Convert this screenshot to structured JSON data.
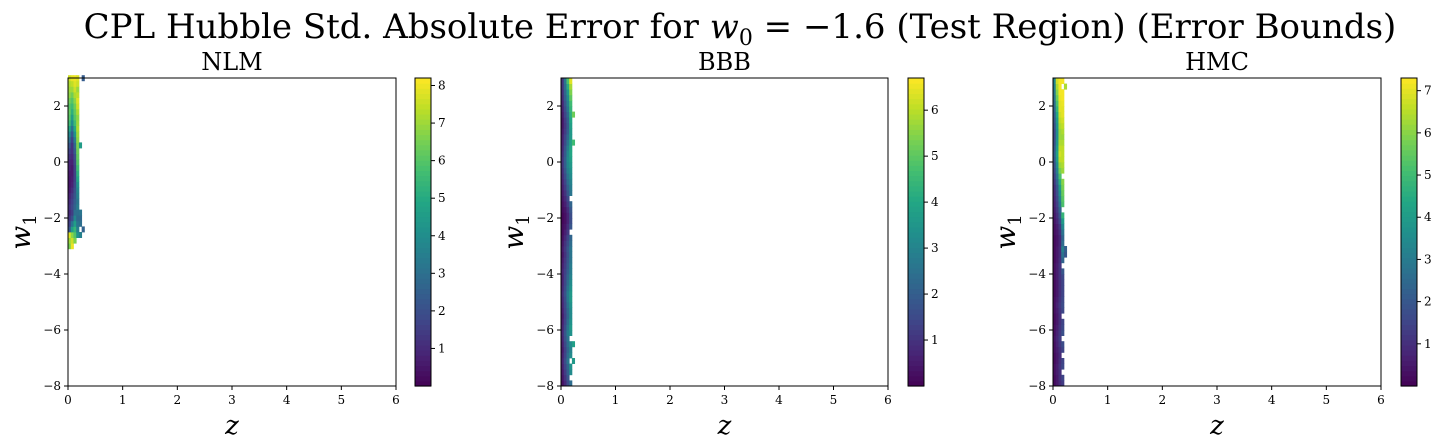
{
  "figure": {
    "title_main": "CPL Hubble Std. Absolute Error for ",
    "title_var": "w",
    "title_sub": "0",
    "title_eq": " = −1.6 (Test Region) (Error Bounds)"
  },
  "chart_data": [
    {
      "type": "heatmap",
      "title": "NLM",
      "xlabel": "z",
      "ylabel_var": "w",
      "ylabel_sub": "1",
      "xlim": [
        0,
        6
      ],
      "ylim": [
        -8,
        3
      ],
      "xticks": [
        "0",
        "1",
        "2",
        "3",
        "4",
        "5",
        "6"
      ],
      "yticks": [
        "−8",
        "−6",
        "−4",
        "−2",
        "0",
        "2"
      ],
      "colorbar": {
        "colormap": "viridis",
        "min": 0,
        "max": 8.2,
        "ticks": [
          "1",
          "2",
          "3",
          "4",
          "5",
          "6",
          "7",
          "8"
        ]
      },
      "cells": {
        "x_start": 0.0,
        "x_step": 0.05,
        "y_start": -3.1,
        "y_step": 0.2,
        "columns": [
          [
            6.5,
            7.0,
            7.8,
            2.2,
            1.6,
            1.3,
            1.0,
            1.2,
            1.0,
            0.8,
            0.6,
            0.5,
            0.5,
            0.6,
            0.8,
            0.9,
            1.2,
            1.6,
            2.2,
            3.0,
            3.8,
            4.8,
            5.6,
            6.0,
            6.2,
            6.0,
            6.4,
            6.8,
            7.0,
            7.2,
            7.6
          ],
          [
            8.0,
            7.6,
            6.8,
            4.6,
            3.2,
            2.0,
            1.5,
            1.8,
            1.6,
            1.4,
            1.1,
            0.8,
            0.7,
            0.6,
            0.6,
            0.8,
            1.0,
            1.2,
            1.2,
            1.6,
            2.2,
            3.0,
            4.0,
            4.6,
            5.2,
            5.6,
            6.0,
            6.4,
            7.0,
            7.4,
            7.9
          ],
          [
            null,
            6.6,
            6.0,
            5.4,
            4.6,
            3.8,
            3.0,
            2.6,
            2.4,
            2.2,
            2.0,
            1.8,
            1.6,
            1.6,
            1.6,
            1.8,
            2.0,
            2.4,
            2.8,
            3.4,
            4.2,
            5.0,
            5.6,
            6.0,
            6.2,
            6.4,
            6.8,
            7.2,
            7.6,
            7.8,
            8.0
          ],
          [
            null,
            null,
            4.2,
            3.6,
            3.2,
            2.8,
            3.0,
            3.4,
            3.2,
            3.6,
            3.8,
            4.2,
            4.8,
            5.2,
            5.6,
            6.0,
            6.2,
            6.4,
            6.6,
            6.8,
            7.0,
            7.2,
            7.0,
            6.8,
            7.2,
            7.6,
            7.8,
            7.4,
            7.0,
            7.6,
            7.8
          ],
          [
            null,
            null,
            3.6,
            null,
            3.0,
            2.8,
            3.2,
            null,
            null,
            null,
            null,
            null,
            null,
            null,
            null,
            null,
            null,
            null,
            4.5,
            null,
            null,
            null,
            null,
            null,
            null,
            null,
            null,
            null,
            null,
            null,
            null
          ],
          [
            null,
            null,
            null,
            2.6,
            null,
            null,
            null,
            null,
            null,
            null,
            null,
            null,
            null,
            null,
            null,
            null,
            null,
            null,
            null,
            null,
            null,
            null,
            null,
            null,
            null,
            null,
            null,
            null,
            null,
            null,
            2.4
          ]
        ]
      }
    },
    {
      "type": "heatmap",
      "title": "BBB",
      "xlabel": "z",
      "ylabel_var": "w",
      "ylabel_sub": "1",
      "xlim": [
        0,
        6
      ],
      "ylim": [
        -8,
        3
      ],
      "xticks": [
        "0",
        "1",
        "2",
        "3",
        "4",
        "5",
        "6"
      ],
      "yticks": [
        "−8",
        "−6",
        "−4",
        "−2",
        "0",
        "2"
      ],
      "colorbar": {
        "colormap": "viridis",
        "min": 0,
        "max": 6.7,
        "ticks": [
          "1",
          "2",
          "3",
          "4",
          "5",
          "6"
        ]
      },
      "cells": {
        "x_start": 0.0,
        "x_step": 0.05,
        "y_start": -8.0,
        "y_step": 0.2,
        "columns": [
          [
            0.3,
            0.4,
            0.5,
            0.6,
            0.7,
            0.6,
            0.5,
            0.6,
            0.7,
            0.8,
            0.7,
            0.6,
            0.5,
            0.6,
            0.7,
            0.8,
            0.9,
            0.8,
            0.7,
            0.6,
            0.7,
            0.6,
            0.5,
            0.4,
            0.5,
            0.4,
            0.3,
            0.2,
            0.2,
            0.1,
            0.1,
            0.2,
            0.3,
            0.4,
            0.5,
            0.6,
            0.7,
            0.8,
            0.9,
            1.0,
            1.0,
            0.9,
            0.8,
            0.7,
            0.6,
            0.5,
            0.4,
            0.4,
            0.5,
            0.6,
            0.7,
            0.8,
            0.9,
            1.0,
            1.0
          ],
          [
            0.8,
            1.0,
            1.2,
            1.4,
            1.6,
            1.4,
            1.3,
            1.5,
            1.7,
            1.8,
            1.6,
            1.4,
            1.3,
            1.4,
            1.5,
            1.6,
            1.7,
            1.6,
            1.5,
            1.4,
            1.3,
            1.2,
            1.1,
            1.0,
            1.1,
            1.0,
            0.8,
            0.6,
            0.4,
            0.3,
            0.3,
            0.4,
            0.6,
            0.8,
            1.0,
            1.2,
            1.4,
            1.6,
            1.8,
            2.0,
            2.0,
            1.9,
            1.8,
            1.6,
            1.4,
            1.2,
            1.1,
            1.2,
            1.4,
            1.6,
            1.8,
            2.0,
            2.2,
            2.4,
            2.6
          ],
          [
            1.6,
            1.8,
            2.0,
            2.2,
            2.6,
            2.4,
            2.2,
            2.4,
            2.6,
            2.8,
            2.6,
            2.4,
            2.2,
            2.3,
            2.5,
            2.7,
            2.8,
            2.6,
            2.4,
            2.2,
            2.0,
            1.9,
            1.8,
            1.7,
            1.8,
            1.6,
            1.4,
            1.1,
            0.9,
            0.7,
            0.7,
            0.9,
            1.2,
            1.5,
            1.8,
            2.1,
            2.4,
            2.6,
            2.9,
            3.1,
            3.2,
            3.1,
            2.9,
            2.6,
            2.3,
            2.0,
            1.9,
            2.0,
            2.3,
            2.6,
            2.9,
            3.2,
            3.6,
            4.2,
            4.8
          ],
          [
            2.4,
            null,
            3.2,
            3.4,
            null,
            3.2,
            3.0,
            3.2,
            null,
            3.4,
            3.6,
            3.4,
            3.2,
            3.2,
            3.4,
            3.6,
            3.6,
            3.4,
            3.2,
            3.0,
            2.8,
            2.8,
            2.6,
            2.6,
            2.6,
            2.4,
            2.2,
            null,
            1.8,
            1.6,
            1.6,
            1.8,
            2.2,
            null,
            2.6,
            2.8,
            3.0,
            3.2,
            3.4,
            3.6,
            3.8,
            4.0,
            4.0,
            3.8,
            3.6,
            3.6,
            3.8,
            4.0,
            4.2,
            4.4,
            4.6,
            5.0,
            5.4,
            5.8,
            6.4
          ],
          [
            null,
            null,
            null,
            null,
            3.6,
            null,
            null,
            3.8,
            null,
            null,
            null,
            null,
            null,
            null,
            null,
            null,
            null,
            null,
            null,
            null,
            null,
            null,
            null,
            null,
            null,
            null,
            null,
            null,
            null,
            null,
            null,
            null,
            null,
            null,
            null,
            null,
            null,
            null,
            null,
            null,
            null,
            null,
            null,
            4.6,
            null,
            null,
            null,
            null,
            5.2,
            null,
            null,
            null,
            null,
            null,
            null
          ]
        ]
      }
    },
    {
      "type": "heatmap",
      "title": "HMC",
      "xlabel": "z",
      "ylabel_var": "w",
      "ylabel_sub": "1",
      "xlim": [
        0,
        6
      ],
      "ylim": [
        -8,
        3
      ],
      "xticks": [
        "0",
        "1",
        "2",
        "3",
        "4",
        "5",
        "6"
      ],
      "yticks": [
        "−8",
        "−6",
        "−4",
        "−2",
        "0",
        "2"
      ],
      "colorbar": {
        "colormap": "viridis",
        "min": 0,
        "max": 7.3,
        "ticks": [
          "1",
          "2",
          "3",
          "4",
          "5",
          "6",
          "7"
        ]
      },
      "cells": {
        "x_start": 0.0,
        "x_step": 0.05,
        "y_start": -8.0,
        "y_step": 0.2,
        "columns": [
          [
            0.2,
            0.2,
            0.3,
            0.3,
            0.2,
            0.2,
            0.3,
            0.3,
            0.4,
            0.3,
            0.3,
            0.2,
            0.2,
            0.3,
            0.3,
            0.3,
            0.2,
            0.2,
            0.2,
            0.3,
            0.3,
            0.3,
            0.2,
            0.2,
            0.2,
            0.2,
            0.2,
            0.3,
            0.3,
            0.4,
            0.5,
            0.6,
            0.7,
            0.8,
            0.9,
            1.0,
            1.2,
            1.4,
            1.6,
            1.8,
            2.0,
            2.2,
            2.0,
            1.8,
            1.6,
            1.6,
            1.8,
            2.0,
            2.2,
            2.4,
            2.6,
            2.8,
            3.0,
            3.2,
            3.4
          ],
          [
            0.5,
            0.5,
            0.6,
            0.6,
            0.5,
            0.5,
            0.6,
            0.7,
            0.8,
            0.7,
            0.6,
            0.5,
            0.5,
            0.6,
            0.7,
            0.6,
            0.5,
            0.5,
            0.5,
            0.6,
            0.6,
            0.6,
            0.5,
            0.5,
            0.5,
            0.4,
            0.4,
            0.5,
            0.6,
            0.8,
            1.0,
            1.2,
            1.4,
            1.6,
            1.8,
            2.0,
            2.4,
            2.8,
            3.2,
            3.6,
            4.0,
            4.2,
            4.0,
            3.8,
            3.6,
            3.6,
            3.8,
            4.0,
            4.4,
            4.8,
            5.2,
            5.6,
            6.0,
            6.4,
            6.8
          ],
          [
            0.9,
            1.0,
            1.0,
            1.1,
            1.0,
            0.9,
            1.0,
            1.2,
            1.3,
            1.2,
            1.1,
            1.0,
            1.0,
            1.1,
            1.2,
            1.1,
            1.0,
            1.0,
            1.0,
            1.1,
            1.1,
            1.1,
            1.0,
            0.9,
            0.9,
            0.8,
            0.8,
            1.0,
            1.2,
            1.6,
            2.0,
            2.4,
            2.8,
            3.2,
            3.6,
            4.0,
            4.6,
            5.2,
            5.8,
            6.2,
            6.6,
            6.8,
            6.6,
            6.4,
            6.2,
            6.2,
            6.4,
            6.6,
            6.8,
            7.0,
            7.0,
            7.1,
            7.2,
            7.2,
            7.2
          ],
          [
            1.3,
            1.5,
            null,
            1.6,
            1.5,
            null,
            1.5,
            1.7,
            null,
            1.8,
            1.6,
            1.5,
            null,
            1.6,
            1.7,
            1.6,
            1.5,
            1.5,
            1.5,
            1.6,
            2.0,
            null,
            2.4,
            2.8,
            3.2,
            2.6,
            2.4,
            2.8,
            3.4,
            4.0,
            4.8,
            null,
            5.2,
            5.4,
            5.6,
            5.8,
            6.0,
            null,
            6.2,
            6.4,
            6.6,
            6.6,
            6.6,
            6.4,
            6.2,
            6.4,
            6.6,
            6.8,
            7.0,
            7.0,
            7.1,
            7.2,
            7.2,
            null,
            7.2
          ],
          [
            null,
            null,
            null,
            null,
            null,
            null,
            null,
            null,
            null,
            null,
            null,
            null,
            null,
            null,
            null,
            null,
            null,
            null,
            null,
            null,
            null,
            null,
            null,
            2.0,
            2.2,
            null,
            null,
            null,
            null,
            null,
            null,
            null,
            null,
            null,
            null,
            null,
            null,
            null,
            null,
            null,
            null,
            null,
            null,
            null,
            null,
            null,
            null,
            null,
            null,
            null,
            null,
            null,
            null,
            6.4,
            null
          ]
        ]
      }
    }
  ]
}
